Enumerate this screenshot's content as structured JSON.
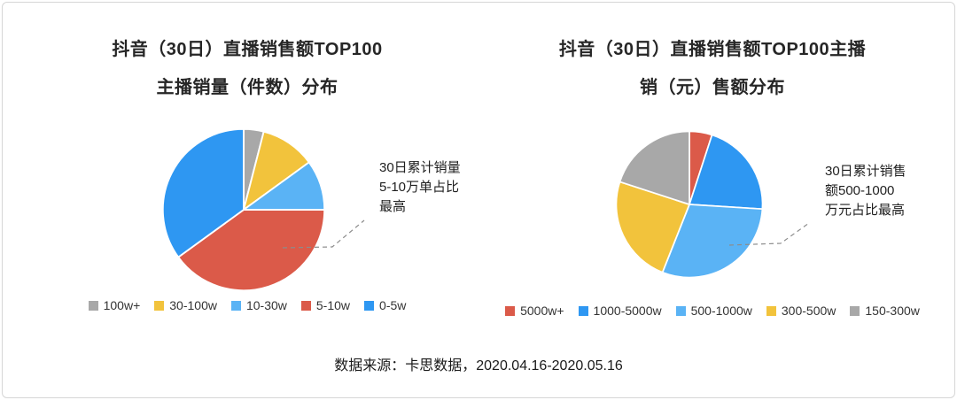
{
  "frame": {
    "background": "#ffffff",
    "border_color": "#d6d6d6"
  },
  "source_note": "数据来源：卡思数据，2020.04.16-2020.05.16",
  "chart_data": [
    {
      "type": "pie",
      "title_lines": [
        "抖音（30日）直播销售额TOP100",
        "主播销量（件数）分布"
      ],
      "title": "抖音（30日）直播销售额TOP100主播销量（件数）分布",
      "labels": [
        "100w+",
        "30-100w",
        "10-30w",
        "5-10w",
        "0-5w"
      ],
      "values": [
        4,
        11,
        10,
        40,
        35
      ],
      "colors": [
        "#a8a8a8",
        "#f2c33c",
        "#5ab3f5",
        "#db5a49",
        "#2e97f2"
      ],
      "annotation_lines": [
        "30日累计销量",
        "5-10万单占比",
        "最高"
      ],
      "legend_position": "bottom",
      "start_angle_deg": -90,
      "direction": "clockwise",
      "units": "percent-estimated"
    },
    {
      "type": "pie",
      "title_lines": [
        "抖音（30日）直播销售额TOP100主播",
        "销（元）售额分布"
      ],
      "title": "抖音（30日）直播销售额TOP100主播销（元）售额分布",
      "labels": [
        "5000w+",
        "1000-5000w",
        "500-1000w",
        "300-500w",
        "150-300w"
      ],
      "values": [
        5,
        21,
        30,
        24,
        20
      ],
      "colors": [
        "#db5a49",
        "#2e97f2",
        "#5ab3f5",
        "#f2c33c",
        "#a8a8a8"
      ],
      "annotation_lines": [
        "30日累计销售",
        "额500-1000",
        "万元占比最高"
      ],
      "legend_position": "bottom",
      "start_angle_deg": -90,
      "direction": "clockwise",
      "units": "percent-estimated"
    }
  ]
}
